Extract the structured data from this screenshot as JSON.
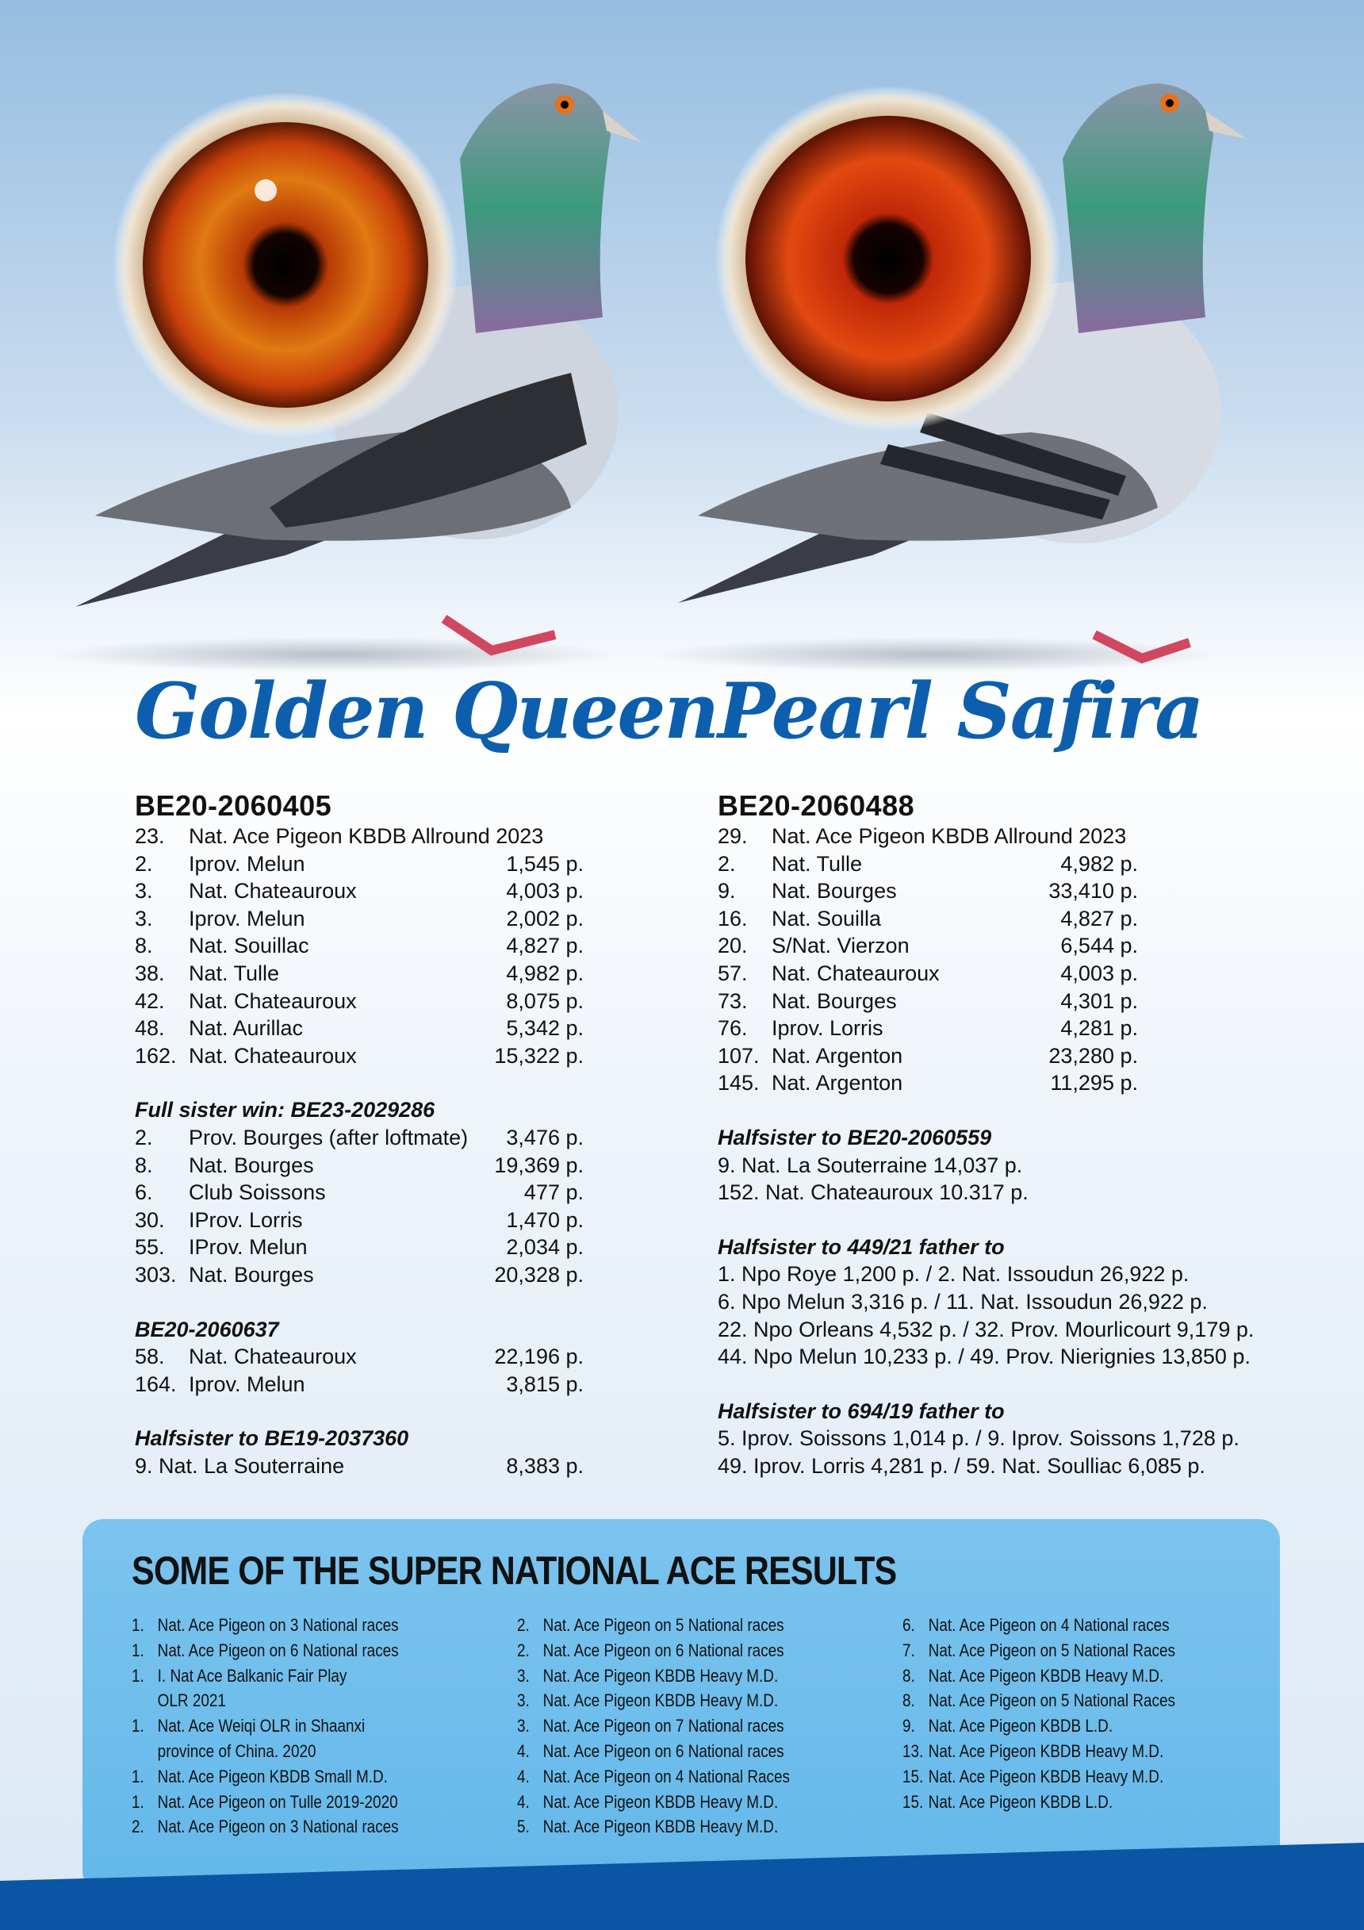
{
  "colors": {
    "accent": "#0d5fae",
    "box": "#6cbdec",
    "band": "#0a56a4"
  },
  "left": {
    "name": "Golden Queen",
    "ring": "BE20-2060405",
    "results": [
      {
        "pos": "23.",
        "race": "Nat. Ace Pigeon KBDB Allround 2023",
        "val": ""
      },
      {
        "pos": "2.",
        "race": "Iprov. Melun",
        "val": "1,545 p."
      },
      {
        "pos": "3.",
        "race": "Nat. Chateauroux",
        "val": "4,003 p."
      },
      {
        "pos": "3.",
        "race": "Iprov. Melun",
        "val": "2,002 p."
      },
      {
        "pos": "8.",
        "race": "Nat. Souillac",
        "val": "4,827 p."
      },
      {
        "pos": "38.",
        "race": "Nat. Tulle",
        "val": "4,982 p."
      },
      {
        "pos": "42.",
        "race": "Nat. Chateauroux",
        "val": "8,075 p."
      },
      {
        "pos": "48.",
        "race": "Nat. Aurillac",
        "val": "5,342 p."
      },
      {
        "pos": "162.",
        "race": "Nat. Chateauroux",
        "val": "15,322 p."
      }
    ],
    "sections": [
      {
        "title": "Full sister win: BE23-2029286",
        "rows": [
          {
            "pos": "2.",
            "race": "Prov. Bourges (after loftmate)",
            "val": "3,476 p."
          },
          {
            "pos": "8.",
            "race": "Nat. Bourges",
            "val": "19,369 p."
          },
          {
            "pos": "6.",
            "race": "Club Soissons",
            "val": "477 p."
          },
          {
            "pos": "30.",
            "race": "IProv. Lorris",
            "val": "1,470 p."
          },
          {
            "pos": "55.",
            "race": "IProv. Melun",
            "val": "2,034 p."
          },
          {
            "pos": "303.",
            "race": "Nat. Bourges",
            "val": "20,328 p."
          }
        ]
      },
      {
        "title": "BE20-2060637",
        "rows": [
          {
            "pos": "58.",
            "race": "Nat. Chateauroux",
            "val": "22,196 p."
          },
          {
            "pos": "164.",
            "race": "Iprov. Melun",
            "val": "3,815 p."
          }
        ]
      },
      {
        "title": "Halfsister to BE19-2037360",
        "rows": [
          {
            "pos": "",
            "race": "9. Nat. La Souterraine",
            "val": "8,383 p."
          }
        ]
      }
    ]
  },
  "right": {
    "name": "Pearl Safira",
    "ring": "BE20-2060488",
    "results": [
      {
        "pos": "29.",
        "race": "Nat. Ace Pigeon KBDB Allround 2023",
        "val": ""
      },
      {
        "pos": "2.",
        "race": "Nat. Tulle",
        "val": "4,982 p."
      },
      {
        "pos": "9.",
        "race": "Nat. Bourges",
        "val": "33,410 p."
      },
      {
        "pos": "16.",
        "race": "Nat. Souilla",
        "val": "4,827 p."
      },
      {
        "pos": "20.",
        "race": "S/Nat. Vierzon",
        "val": "6,544 p."
      },
      {
        "pos": "57.",
        "race": "Nat. Chateauroux",
        "val": "4,003 p."
      },
      {
        "pos": "73.",
        "race": "Nat. Bourges",
        "val": "4,301 p."
      },
      {
        "pos": "76.",
        "race": "Iprov. Lorris",
        "val": "4,281 p."
      },
      {
        "pos": "107.",
        "race": "Nat. Argenton",
        "val": "23,280 p."
      },
      {
        "pos": "145.",
        "race": "Nat. Argenton",
        "val": "11,295 p."
      }
    ],
    "sections": [
      {
        "title": "Halfsister to BE20-2060559",
        "lines": [
          "9. Nat. La Souterraine 14,037 p.",
          "152. Nat. Chateauroux 10.317 p."
        ]
      },
      {
        "title": "Halfsister to 449/21 father to",
        "lines": [
          "1. Npo Roye 1,200 p. / 2. Nat. Issoudun 26,922 p.",
          "6. Npo Melun 3,316 p. / 11. Nat. Issoudun 26,922 p.",
          "22. Npo Orleans 4,532 p. / 32. Prov. Mourlicourt 9,179 p.",
          "44. Npo Melun 10,233 p. / 49. Prov. Nierignies 13,850 p."
        ]
      },
      {
        "title": "Halfsister to 694/19 father to",
        "lines": [
          "5. Iprov. Soissons 1,014 p. / 9. Iprov. Soissons 1,728 p.",
          "49. Iprov. Lorris 4,281 p. / 59. Nat. Soulliac 6,085 p."
        ]
      }
    ]
  },
  "ace": {
    "title": "SOME OF THE SUPER NATIONAL ACE RESULTS",
    "columns": [
      [
        {
          "n": "1.",
          "t": "Nat. Ace Pigeon on 3 National races"
        },
        {
          "n": "1.",
          "t": "Nat. Ace Pigeon on 6 National races"
        },
        {
          "n": "1.",
          "t": "I. Nat Ace Balkanic Fair Play"
        },
        {
          "n": "",
          "t": "OLR 2021"
        },
        {
          "n": "1.",
          "t": "Nat. Ace Weiqi OLR in Shaanxi"
        },
        {
          "n": "",
          "t": "province of China. 2020"
        },
        {
          "n": "1.",
          "t": "Nat. Ace Pigeon KBDB Small M.D."
        },
        {
          "n": "1.",
          "t": "Nat. Ace Pigeon on Tulle 2019-2020"
        },
        {
          "n": "2.",
          "t": "Nat. Ace Pigeon on 3 National races"
        }
      ],
      [
        {
          "n": "2.",
          "t": "Nat. Ace Pigeon on 5 National races"
        },
        {
          "n": "2.",
          "t": "Nat. Ace Pigeon on 6 National races"
        },
        {
          "n": "3.",
          "t": "Nat. Ace Pigeon KBDB Heavy M.D."
        },
        {
          "n": "3.",
          "t": "Nat. Ace Pigeon KBDB Heavy M.D."
        },
        {
          "n": "3.",
          "t": "Nat. Ace Pigeon on 7 National races"
        },
        {
          "n": "4.",
          "t": "Nat. Ace Pigeon on 6 National races"
        },
        {
          "n": "4.",
          "t": "Nat. Ace Pigeon on 4 National Races"
        },
        {
          "n": "4.",
          "t": "Nat. Ace Pigeon KBDB Heavy M.D."
        },
        {
          "n": "5.",
          "t": "Nat. Ace Pigeon KBDB Heavy M.D."
        }
      ],
      [
        {
          "n": "6.",
          "t": "Nat. Ace Pigeon on 4 National races"
        },
        {
          "n": "7.",
          "t": "Nat. Ace Pigeon on 5 National Races"
        },
        {
          "n": "8.",
          "t": "Nat. Ace Pigeon KBDB Heavy M.D."
        },
        {
          "n": "8.",
          "t": "Nat. Ace Pigeon on 5 National Races"
        },
        {
          "n": "9.",
          "t": "Nat. Ace Pigeon KBDB L.D."
        },
        {
          "n": "13.",
          "t": "Nat. Ace Pigeon KBDB Heavy M.D."
        },
        {
          "n": "15.",
          "t": "Nat. Ace Pigeon KBDB Heavy M.D."
        },
        {
          "n": "15.",
          "t": "Nat. Ace Pigeon KBDB L.D."
        }
      ]
    ]
  }
}
